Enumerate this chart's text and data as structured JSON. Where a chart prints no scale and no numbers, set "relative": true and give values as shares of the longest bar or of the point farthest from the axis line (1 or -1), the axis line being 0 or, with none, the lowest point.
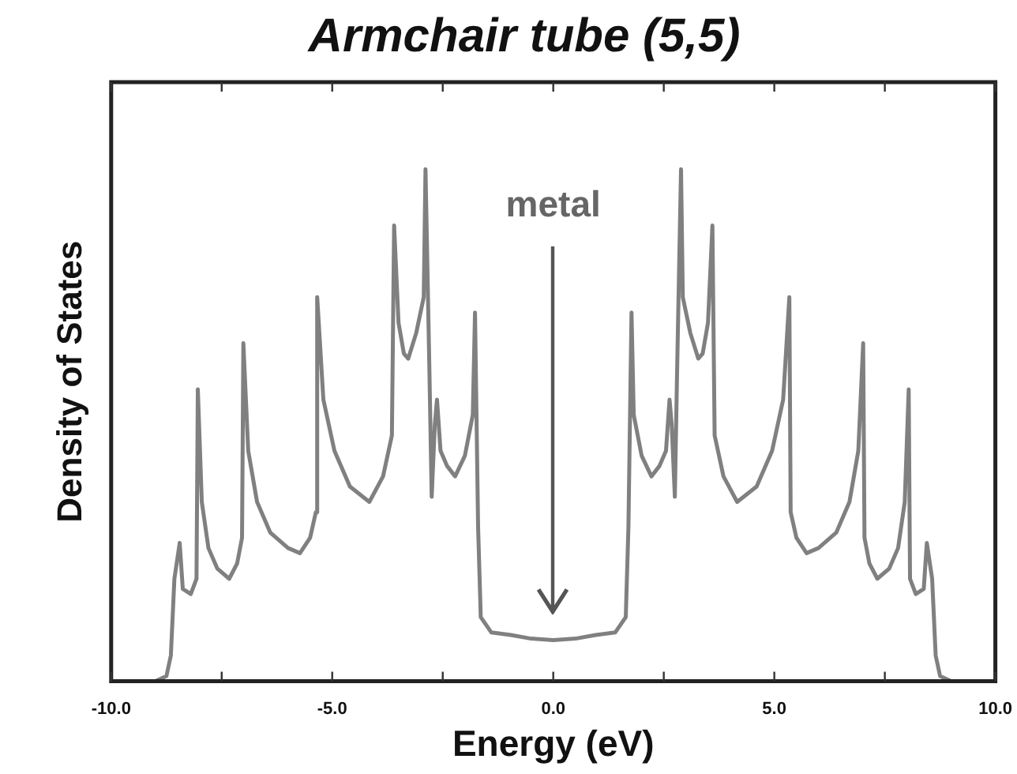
{
  "chart_data": {
    "type": "line",
    "title": "Armchair tube (5,5)",
    "xlabel": "Energy (eV)",
    "ylabel": "Density of States",
    "relative": true,
    "xlim": [
      -10,
      10
    ],
    "xticks": [
      {
        "value": -10,
        "label": "-10.0"
      },
      {
        "value": -7.5,
        "label": null
      },
      {
        "value": -5,
        "label": "-5.0"
      },
      {
        "value": -2.5,
        "label": null
      },
      {
        "value": 0,
        "label": "0.0"
      },
      {
        "value": 2.5,
        "label": null
      },
      {
        "value": 5,
        "label": "5.0"
      },
      {
        "value": 7.5,
        "label": null
      },
      {
        "value": 10,
        "label": "10.0"
      }
    ],
    "annotations": [
      "metal"
    ],
    "marker": "none",
    "line_style": "solid",
    "series": [
      {
        "color": "#808080",
        "x": [
          -10,
          -9,
          -8.75,
          -8.65,
          -8.57,
          -8.45,
          -8.38,
          -8.2,
          -8.07,
          -8.04,
          -7.95,
          -7.8,
          -7.6,
          -7.33,
          -7.15,
          -7.04,
          -7.01,
          -6.9,
          -6.7,
          -6.4,
          -6,
          -5.73,
          -5.5,
          -5.37,
          -5.34,
          -5.2,
          -4.95,
          -4.6,
          -4.16,
          -3.85,
          -3.65,
          -3.6,
          -3.5,
          -3.38,
          -3.28,
          -3.1,
          -2.93,
          -2.89,
          -2.8,
          -2.75,
          -2.68,
          -2.63,
          -2.55,
          -2.4,
          -2.22,
          -2,
          -1.82,
          -1.77,
          -1.7,
          -1.64,
          -1.4,
          -0.96,
          -0.5,
          0,
          0.5,
          0.96,
          1.4,
          1.64,
          1.7,
          1.77,
          1.82,
          2,
          2.22,
          2.4,
          2.55,
          2.63,
          2.68,
          2.75,
          2.8,
          2.89,
          2.93,
          3.1,
          3.28,
          3.38,
          3.5,
          3.6,
          3.65,
          3.85,
          4.16,
          4.6,
          4.95,
          5.2,
          5.34,
          5.37,
          5.5,
          5.73,
          6,
          6.4,
          6.7,
          6.9,
          7.01,
          7.04,
          7.15,
          7.33,
          7.6,
          7.8,
          7.95,
          8.04,
          8.07,
          8.2,
          8.38,
          8.45,
          8.57,
          8.65,
          8.75,
          9,
          10
        ],
        "values": [
          0,
          0,
          0.01,
          0.05,
          0.2,
          0.27,
          0.18,
          0.17,
          0.2,
          0.57,
          0.35,
          0.26,
          0.22,
          0.2,
          0.23,
          0.28,
          0.66,
          0.45,
          0.35,
          0.29,
          0.26,
          0.25,
          0.28,
          0.33,
          0.75,
          0.55,
          0.45,
          0.38,
          0.35,
          0.4,
          0.48,
          0.89,
          0.7,
          0.64,
          0.63,
          0.68,
          0.75,
          1,
          0.6,
          0.36,
          0.5,
          0.55,
          0.45,
          0.42,
          0.4,
          0.44,
          0.52,
          0.72,
          0.3,
          0.125,
          0.095,
          0.09,
          0.083,
          0.08,
          0.083,
          0.09,
          0.095,
          0.125,
          0.3,
          0.72,
          0.52,
          0.44,
          0.4,
          0.42,
          0.45,
          0.55,
          0.5,
          0.36,
          0.6,
          1,
          0.75,
          0.68,
          0.63,
          0.64,
          0.7,
          0.89,
          0.48,
          0.4,
          0.35,
          0.38,
          0.45,
          0.55,
          0.75,
          0.33,
          0.28,
          0.25,
          0.26,
          0.29,
          0.35,
          0.45,
          0.66,
          0.28,
          0.23,
          0.2,
          0.22,
          0.26,
          0.35,
          0.57,
          0.2,
          0.17,
          0.18,
          0.27,
          0.2,
          0.05,
          0.01,
          0,
          0
        ]
      }
    ]
  }
}
